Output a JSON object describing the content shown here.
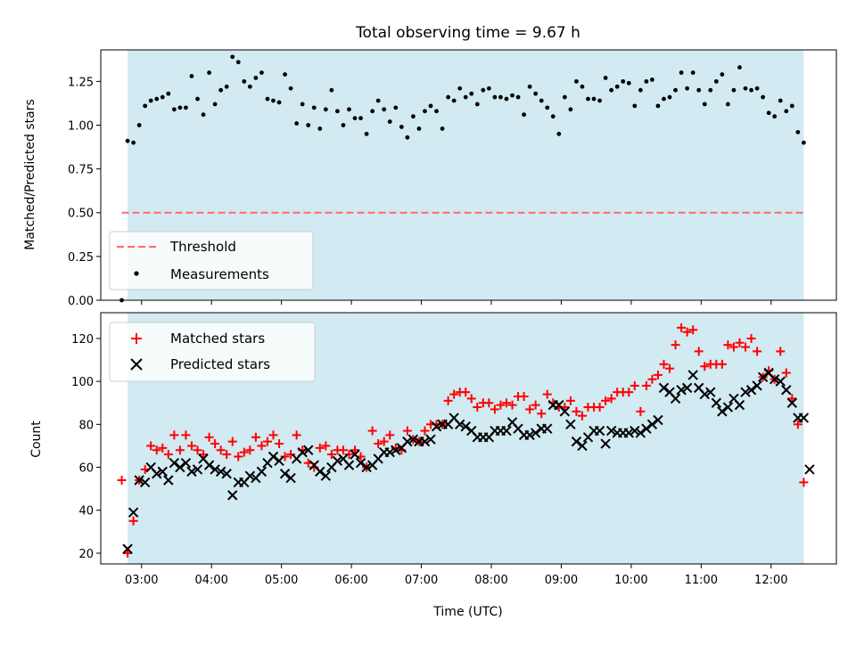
{
  "title": "Total observing time = 9.67 h",
  "colors": {
    "observing_band": "#add8e6",
    "threshold": "#ff6b6b",
    "measurements": "#000000",
    "matched": "#ff0000",
    "predicted": "#000000"
  },
  "chart_data": [
    {
      "type": "scatter",
      "ylabel": "Matched/Predicted stars",
      "ylim": [
        0,
        1.43
      ],
      "yticks": [
        "0.00",
        "0.25",
        "0.50",
        "0.75",
        "1.00",
        "1.25"
      ],
      "xlim": [
        "02:25",
        "12:56"
      ],
      "observing_span": [
        "02:48",
        "12:28"
      ],
      "threshold": 0.5,
      "legend": {
        "position": "lower-left",
        "entries": [
          "Threshold",
          "Measurements"
        ]
      },
      "series": [
        {
          "name": "Measurements",
          "x": [
            "02:43",
            "02:48",
            "02:53",
            "02:58",
            "03:03",
            "03:08",
            "03:13",
            "03:18",
            "03:23",
            "03:28",
            "03:33",
            "03:38",
            "03:43",
            "03:48",
            "03:53",
            "03:58",
            "04:03",
            "04:08",
            "04:13",
            "04:18",
            "04:23",
            "04:28",
            "04:33",
            "04:38",
            "04:43",
            "04:48",
            "04:53",
            "04:58",
            "05:03",
            "05:08",
            "05:13",
            "05:18",
            "05:23",
            "05:28",
            "05:33",
            "05:38",
            "05:43",
            "05:48",
            "05:53",
            "05:58",
            "06:03",
            "06:08",
            "06:13",
            "06:18",
            "06:23",
            "06:28",
            "06:33",
            "06:38",
            "06:43",
            "06:48",
            "06:53",
            "06:58",
            "07:03",
            "07:08",
            "07:13",
            "07:18",
            "07:23",
            "07:28",
            "07:33",
            "07:38",
            "07:43",
            "07:48",
            "07:53",
            "07:58",
            "08:03",
            "08:08",
            "08:13",
            "08:18",
            "08:23",
            "08:28",
            "08:33",
            "08:38",
            "08:43",
            "08:48",
            "08:53",
            "08:58",
            "09:03",
            "09:08",
            "09:13",
            "09:18",
            "09:23",
            "09:28",
            "09:33",
            "09:38",
            "09:43",
            "09:48",
            "09:53",
            "09:58",
            "10:03",
            "10:08",
            "10:13",
            "10:18",
            "10:23",
            "10:28",
            "10:33",
            "10:38",
            "10:43",
            "10:48",
            "10:53",
            "10:58",
            "11:03",
            "11:08",
            "11:13",
            "11:18",
            "11:23",
            "11:28",
            "11:33",
            "11:38",
            "11:43",
            "11:48",
            "11:53",
            "11:58",
            "12:03",
            "12:08",
            "12:13",
            "12:18",
            "12:23",
            "12:28"
          ],
          "values": [
            0.0,
            0.91,
            0.9,
            1.0,
            1.11,
            1.14,
            1.15,
            1.16,
            1.18,
            1.09,
            1.1,
            1.1,
            1.28,
            1.15,
            1.06,
            1.3,
            1.12,
            1.2,
            1.22,
            1.39,
            1.36,
            1.25,
            1.22,
            1.27,
            1.3,
            1.15,
            1.14,
            1.13,
            1.29,
            1.21,
            1.01,
            1.12,
            1.0,
            1.1,
            0.98,
            1.09,
            1.2,
            1.08,
            1.0,
            1.09,
            1.04,
            1.04,
            0.95,
            1.08,
            1.14,
            1.09,
            1.02,
            1.1,
            0.99,
            0.93,
            1.05,
            0.98,
            1.08,
            1.11,
            1.08,
            0.98,
            1.16,
            1.14,
            1.21,
            1.16,
            1.18,
            1.12,
            1.2,
            1.21,
            1.16,
            1.16,
            1.15,
            1.17,
            1.16,
            1.06,
            1.22,
            1.18,
            1.14,
            1.1,
            1.05,
            0.95,
            1.16,
            1.09,
            1.25,
            1.22,
            1.15,
            1.15,
            1.14,
            1.27,
            1.2,
            1.22,
            1.25,
            1.24,
            1.11,
            1.2,
            1.25,
            1.26,
            1.11,
            1.15,
            1.16,
            1.2,
            1.3,
            1.21,
            1.3,
            1.2,
            1.12,
            1.2,
            1.25,
            1.29,
            1.12,
            1.2,
            1.33,
            1.21,
            1.2,
            1.21,
            1.16,
            1.07,
            1.05,
            1.14,
            1.08,
            1.11,
            0.96,
            0.9
          ]
        }
      ]
    },
    {
      "type": "scatter",
      "xlabel": "Time (UTC)",
      "ylabel": "Count",
      "ylim": [
        15,
        132
      ],
      "yticks": [
        "20",
        "40",
        "60",
        "80",
        "100",
        "120"
      ],
      "xticks": [
        "03:00",
        "04:00",
        "05:00",
        "06:00",
        "07:00",
        "08:00",
        "09:00",
        "10:00",
        "11:00",
        "12:00"
      ],
      "xlim": [
        "02:25",
        "12:56"
      ],
      "observing_span": [
        "02:48",
        "12:28"
      ],
      "legend": {
        "position": "upper-left",
        "entries": [
          "Matched stars",
          "Predicted stars"
        ]
      },
      "series": [
        {
          "name": "Matched stars",
          "x": [
            "02:43",
            "02:48",
            "02:53",
            "02:58",
            "03:03",
            "03:08",
            "03:13",
            "03:18",
            "03:23",
            "03:28",
            "03:33",
            "03:38",
            "03:43",
            "03:48",
            "03:53",
            "03:58",
            "04:03",
            "04:08",
            "04:13",
            "04:18",
            "04:23",
            "04:28",
            "04:33",
            "04:38",
            "04:43",
            "04:48",
            "04:53",
            "04:58",
            "05:03",
            "05:08",
            "05:13",
            "05:18",
            "05:23",
            "05:28",
            "05:33",
            "05:38",
            "05:43",
            "05:48",
            "05:53",
            "05:58",
            "06:03",
            "06:08",
            "06:13",
            "06:18",
            "06:23",
            "06:28",
            "06:33",
            "06:38",
            "06:43",
            "06:48",
            "06:53",
            "06:58",
            "07:03",
            "07:08",
            "07:13",
            "07:18",
            "07:23",
            "07:28",
            "07:33",
            "07:38",
            "07:43",
            "07:48",
            "07:53",
            "07:58",
            "08:03",
            "08:08",
            "08:13",
            "08:18",
            "08:23",
            "08:28",
            "08:33",
            "08:38",
            "08:43",
            "08:48",
            "08:53",
            "08:58",
            "09:03",
            "09:08",
            "09:13",
            "09:18",
            "09:23",
            "09:28",
            "09:33",
            "09:38",
            "09:43",
            "09:48",
            "09:53",
            "09:58",
            "10:03",
            "10:08",
            "10:13",
            "10:18",
            "10:23",
            "10:28",
            "10:33",
            "10:38",
            "10:43",
            "10:48",
            "10:53",
            "10:58",
            "11:03",
            "11:08",
            "11:13",
            "11:18",
            "11:23",
            "11:28",
            "11:33",
            "11:38",
            "11:43",
            "11:48",
            "11:53",
            "11:58",
            "12:03",
            "12:08",
            "12:13",
            "12:18",
            "12:23",
            "12:28"
          ],
          "values": [
            54,
            20,
            35,
            54,
            59,
            70,
            68,
            69,
            66,
            75,
            68,
            75,
            70,
            68,
            66,
            74,
            71,
            68,
            66,
            72,
            65,
            67,
            68,
            74,
            70,
            72,
            75,
            71,
            65,
            66,
            75,
            68,
            62,
            60,
            69,
            70,
            66,
            68,
            68,
            66,
            68,
            65,
            60,
            77,
            71,
            72,
            75,
            69,
            68,
            77,
            73,
            72,
            77,
            80,
            80,
            80,
            91,
            94,
            95,
            95,
            92,
            88,
            90,
            90,
            87,
            89,
            90,
            89,
            93,
            93,
            87,
            89,
            85,
            94,
            90,
            88,
            88,
            91,
            86,
            84,
            88,
            88,
            88,
            91,
            92,
            95,
            95,
            95,
            98,
            86,
            98,
            101,
            103,
            108,
            106,
            117,
            125,
            123,
            124,
            114,
            107,
            108,
            108,
            108,
            117,
            116,
            118,
            116,
            120,
            114,
            102,
            105,
            101,
            114,
            104,
            92,
            80,
            53
          ]
        },
        {
          "name": "Predicted stars",
          "x": [
            "02:48",
            "02:53",
            "02:58",
            "03:03",
            "03:08",
            "03:13",
            "03:18",
            "03:23",
            "03:28",
            "03:33",
            "03:38",
            "03:43",
            "03:48",
            "03:53",
            "03:58",
            "04:03",
            "04:08",
            "04:13",
            "04:18",
            "04:23",
            "04:28",
            "04:33",
            "04:38",
            "04:43",
            "04:48",
            "04:53",
            "04:58",
            "05:03",
            "05:08",
            "05:13",
            "05:18",
            "05:23",
            "05:28",
            "05:33",
            "05:38",
            "05:43",
            "05:48",
            "05:53",
            "05:58",
            "06:03",
            "06:08",
            "06:13",
            "06:18",
            "06:23",
            "06:28",
            "06:33",
            "06:38",
            "06:43",
            "06:48",
            "06:53",
            "06:58",
            "07:03",
            "07:08",
            "07:13",
            "07:18",
            "07:23",
            "07:28",
            "07:33",
            "07:38",
            "07:43",
            "07:48",
            "07:53",
            "07:58",
            "08:03",
            "08:08",
            "08:13",
            "08:18",
            "08:23",
            "08:28",
            "08:33",
            "08:38",
            "08:43",
            "08:48",
            "08:53",
            "08:58",
            "09:03",
            "09:08",
            "09:13",
            "09:18",
            "09:23",
            "09:28",
            "09:33",
            "09:38",
            "09:43",
            "09:48",
            "09:53",
            "09:58",
            "10:03",
            "10:08",
            "10:13",
            "10:18",
            "10:23",
            "10:28",
            "10:33",
            "10:38",
            "10:43",
            "10:48",
            "10:53",
            "10:58",
            "11:03",
            "11:08",
            "11:13",
            "11:18",
            "11:23",
            "11:28",
            "11:33",
            "11:38",
            "11:43",
            "11:48",
            "11:53",
            "11:58",
            "12:03",
            "12:08",
            "12:13",
            "12:18",
            "12:23",
            "12:28",
            "12:33"
          ],
          "values": [
            22,
            39,
            54,
            53,
            60,
            57,
            58,
            54,
            62,
            60,
            62,
            58,
            59,
            64,
            61,
            59,
            58,
            57,
            47,
            53,
            53,
            56,
            55,
            58,
            62,
            65,
            63,
            57,
            55,
            64,
            67,
            68,
            61,
            58,
            56,
            60,
            63,
            64,
            61,
            66,
            62,
            60,
            61,
            64,
            67,
            67,
            68,
            69,
            72,
            73,
            72,
            72,
            73,
            79,
            80,
            80,
            83,
            80,
            79,
            77,
            74,
            74,
            74,
            77,
            77,
            77,
            81,
            78,
            75,
            75,
            76,
            78,
            78,
            89,
            89,
            86,
            80,
            72,
            70,
            74,
            77,
            77,
            71,
            77,
            76,
            76,
            76,
            77,
            76,
            78,
            80,
            82,
            97,
            95,
            92,
            96,
            97,
            103,
            97,
            94,
            95,
            90,
            86,
            88,
            92,
            89,
            95,
            96,
            98,
            102,
            104,
            101,
            100,
            96,
            90,
            83,
            83,
            59
          ]
        }
      ]
    }
  ]
}
